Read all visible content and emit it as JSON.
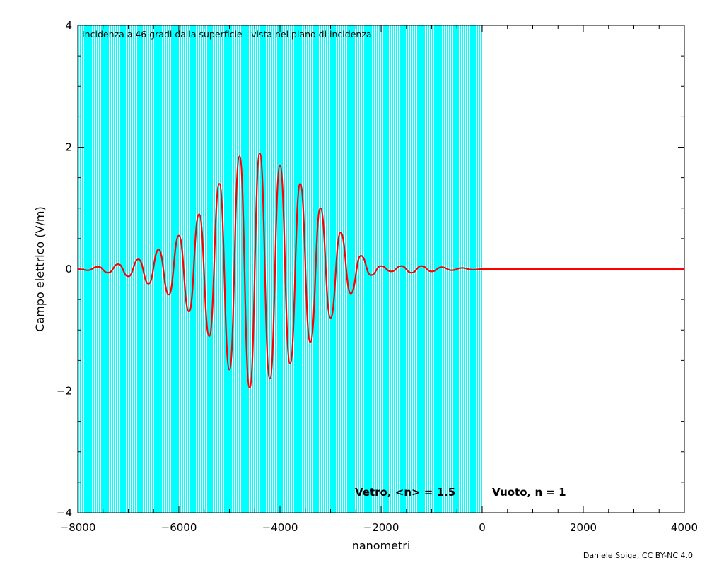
{
  "chart_data": {
    "type": "line",
    "title": "Incidenza a 46 gradi dalla superficie - vista nel piano di incidenza",
    "xlabel": "nanometri",
    "ylabel": "Campo elettrico (V/m)",
    "xlim": [
      -8000,
      4000
    ],
    "ylim": [
      -4,
      4
    ],
    "x_ticks": [
      -8000,
      -6000,
      -4000,
      -2000,
      0,
      2000,
      4000
    ],
    "x_tick_labels": [
      "−8000",
      "−6000",
      "−4000",
      "−2000",
      "0",
      "2000",
      "4000"
    ],
    "y_ticks": [
      -4,
      -2,
      0,
      2,
      4
    ],
    "y_tick_labels": [
      "−4",
      "−2",
      "0",
      "2",
      "4"
    ],
    "grid": false,
    "regions": [
      {
        "label": "Vetro, <n> = 1.5",
        "x_range": [
          -8000,
          0
        ],
        "color": "#00ffff"
      },
      {
        "label": "Vuoto, n = 1",
        "x_range": [
          0,
          4000
        ],
        "color": "#ffffff"
      }
    ],
    "series": [
      {
        "color": "#ff0000",
        "x": [
          -8000,
          -7800,
          -7600,
          -7400,
          -7200,
          -7000,
          -6800,
          -6600,
          -6400,
          -6200,
          -6000,
          -5800,
          -5600,
          -5400,
          -5200,
          -5000,
          -4800,
          -4600,
          -4400,
          -4200,
          -4000,
          -3800,
          -3600,
          -3400,
          -3200,
          -3000,
          -2800,
          -2600,
          -2400,
          -2200,
          -2000,
          -1800,
          -1600,
          -1400,
          -1200,
          -1000,
          -800,
          -600,
          -400,
          -200,
          0,
          1000,
          2000,
          3000,
          4000
        ],
        "y": [
          0.0,
          -0.02,
          0.04,
          -0.06,
          0.08,
          -0.12,
          0.16,
          -0.24,
          0.32,
          -0.42,
          0.55,
          -0.7,
          0.9,
          -1.1,
          1.4,
          -1.65,
          1.85,
          -1.95,
          1.9,
          -1.8,
          1.7,
          -1.55,
          1.4,
          -1.2,
          1.0,
          -0.8,
          0.6,
          -0.4,
          0.22,
          -0.1,
          0.05,
          -0.04,
          0.05,
          -0.06,
          0.05,
          -0.04,
          0.03,
          -0.02,
          0.02,
          -0.01,
          0.0,
          0.0,
          0.0,
          0.0,
          0.0
        ]
      }
    ]
  },
  "credit": "Daniele Spiga, CC BY-NC 4.0"
}
